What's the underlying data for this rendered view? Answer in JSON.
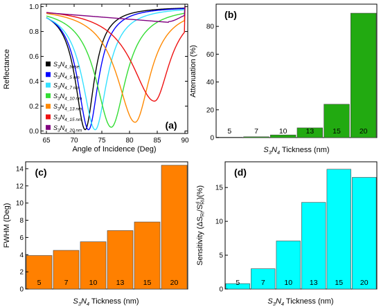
{
  "chart_data": [
    {
      "panel": "(a)",
      "type": "line",
      "xlabel": "Angle of Incidence (Deg)",
      "ylabel": "Reflectance",
      "xlim": [
        64,
        90.5
      ],
      "ylim": [
        -0.02,
        1.02
      ],
      "xticks": [
        "65",
        "70",
        "75",
        "80",
        "85",
        "90"
      ],
      "yticks": [
        "0.0",
        "0.2",
        "0.4",
        "0.6",
        "0.8",
        "1.0"
      ],
      "legend_position": "left-center",
      "series": [
        {
          "name": "S3N4_base",
          "main": "S",
          "sub1": "3",
          "mid": "N",
          "sub2": "4",
          "suffix": "_base",
          "color": "#000000",
          "dip_angle": 72.0,
          "min_reflectance": 0.01,
          "width_left": 2.2,
          "width_right": 2.0
        },
        {
          "name": "S3N4_5 nm",
          "main": "S",
          "sub1": "3",
          "mid": "N",
          "sub2": "4",
          "suffix": "_5 nm",
          "color": "#0000ff",
          "dip_angle": 72.6,
          "min_reflectance": 0.01,
          "width_left": 2.4,
          "width_right": 2.2
        },
        {
          "name": "S3N4_7 nm",
          "main": "S",
          "sub1": "3",
          "mid": "N",
          "sub2": "4",
          "suffix": "_7 nm",
          "color": "#33e0ff",
          "dip_angle": 73.8,
          "min_reflectance": 0.01,
          "width_left": 2.8,
          "width_right": 2.6
        },
        {
          "name": "S3N4_10 nm",
          "main": "S",
          "sub1": "3",
          "mid": "N",
          "sub2": "4",
          "suffix": "_10 nm",
          "color": "#33dd33",
          "dip_angle": 76.7,
          "min_reflectance": 0.03,
          "width_left": 3.4,
          "width_right": 3.2
        },
        {
          "name": "S3N4_13 nm",
          "main": "S",
          "sub1": "3",
          "mid": "N",
          "sub2": "4",
          "suffix": "_13 nm",
          "color": "#ff8800",
          "dip_angle": 81.0,
          "min_reflectance": 0.07,
          "width_left": 4.0,
          "width_right": 3.3
        },
        {
          "name": "S3N4_15 nm",
          "main": "S",
          "sub1": "3",
          "mid": "N",
          "sub2": "4",
          "suffix": "_15 nm",
          "color": "#ee1111",
          "dip_angle": 84.5,
          "min_reflectance": 0.24,
          "width_left": 5.0,
          "width_right": 3.3
        },
        {
          "name": "S3N4_20 nm",
          "main": "S",
          "sub1": "3",
          "mid": "N",
          "sub2": "4",
          "suffix": "_20 nm",
          "color": "#800080",
          "dip_angle": 87.0,
          "min_reflectance": 0.88,
          "width_left": 10.0,
          "width_right": 3.5
        }
      ]
    },
    {
      "panel": "(b)",
      "type": "bar",
      "xlabel": "S3N4 Tickness (nm)",
      "ylabel": "Attenuation (%)",
      "categories": [
        "5",
        "7",
        "10",
        "13",
        "15",
        "20"
      ],
      "values": [
        0.3,
        0.6,
        1.9,
        7.0,
        24.0,
        89.5
      ],
      "ylim": [
        0,
        96
      ],
      "yticks": [
        "0",
        "20",
        "40",
        "60",
        "80"
      ],
      "color": "#22aa11"
    },
    {
      "panel": "(c)",
      "type": "bar",
      "xlabel": "S3N4 Tickness (nm)",
      "ylabel": "FWHM (Deg)",
      "categories": [
        "5",
        "7",
        "10",
        "13",
        "15",
        "20"
      ],
      "values": [
        3.9,
        4.5,
        5.5,
        6.8,
        7.8,
        14.4
      ],
      "ylim": [
        0,
        14.8
      ],
      "yticks": [
        "0",
        "2",
        "4",
        "6",
        "8",
        "10",
        "12",
        "14"
      ],
      "color": "#ff8000"
    },
    {
      "panel": "(d)",
      "type": "bar",
      "xlabel": "S3N4 Tickness (nm)",
      "ylabel": "Sensitivity (ΔS_RI/S_RI^d)(%)",
      "categories": [
        "5",
        "7",
        "10",
        "13",
        "15",
        "20"
      ],
      "values": [
        0.8,
        3.0,
        7.1,
        12.8,
        17.7,
        16.5
      ],
      "ylim": [
        0,
        18.8
      ],
      "yticks": [
        "0",
        "5",
        "10",
        "15"
      ],
      "color": "#00ffff"
    }
  ],
  "labels": {
    "a": {
      "tag": "(a)",
      "xlabel": "Angle of Incidence (Deg)",
      "ylabel": "Reflectance"
    },
    "b": {
      "tag": "(b)",
      "ylabel": "Attenuation (%)",
      "x_main": "S",
      "x_sub1": "3",
      "x_mid": "N",
      "x_sub2": "4",
      "x_rest": " Tickness (nm)"
    },
    "c": {
      "tag": "(c)",
      "ylabel": "FWHM (Deg)",
      "x_main": "S",
      "x_sub1": "3",
      "x_mid": "N",
      "x_sub2": "4",
      "x_rest": " Tickness (nm)"
    },
    "d": {
      "tag": "(d)",
      "ylabel_pre": "Sensitivity (ΔS",
      "ylabel_sub1": "RI",
      "ylabel_mid": "/S",
      "ylabel_sub2": "RI",
      "ylabel_sup": "d",
      "ylabel_post": ")(%)",
      "x_main": "S",
      "x_sub1": "3",
      "x_mid": "N",
      "x_sub2": "4",
      "x_rest": " Tickness (nm)"
    }
  }
}
